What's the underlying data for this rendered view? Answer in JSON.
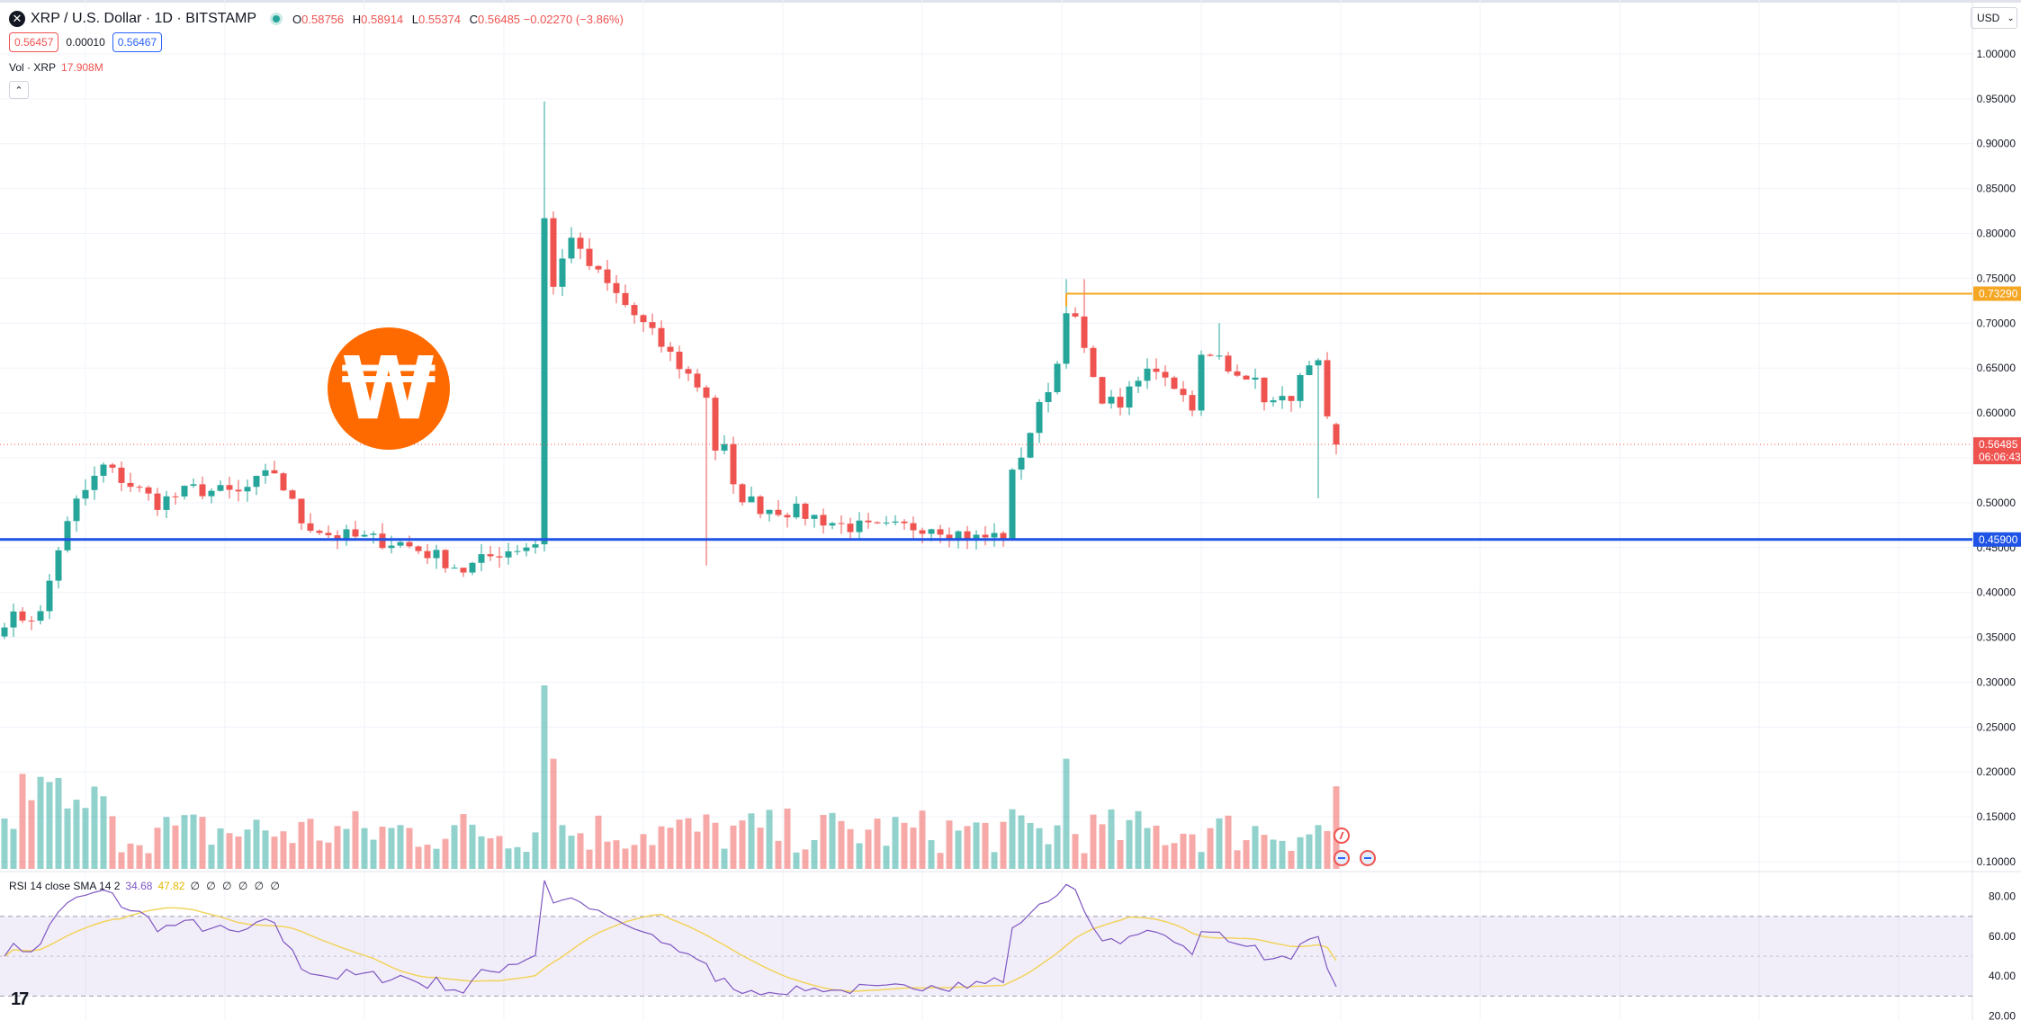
{
  "header": {
    "symbol_title": "XRP / U.S. Dollar · 1D · BITSTAMP",
    "ohlc": [
      {
        "k": "O",
        "v": "0.58756"
      },
      {
        "k": "H",
        "v": "0.58914"
      },
      {
        "k": "L",
        "v": "0.55374"
      },
      {
        "k": "C",
        "v": "0.56485 −0.02270 (−3.86%)"
      }
    ],
    "bid": "0.56457",
    "spread": "0.00010",
    "ask": "0.56467",
    "currency": "USD"
  },
  "volume": {
    "label": "Vol · XRP",
    "value": "17.908M"
  },
  "rsi": {
    "label": "RSI 14 close SMA 14 2",
    "rsi_value": "34.68",
    "sma_value": "47.82",
    "extra": "∅ ∅ ∅ ∅ ∅ ∅"
  },
  "colors": {
    "up": "#26a69a",
    "down": "#ef5350",
    "support": "#1e53e5",
    "resistance": "#f5a623",
    "rsi": "#7e57c2",
    "rsi_sma": "#f2d35c"
  },
  "icons": [
    "close-icon",
    "chevron-up-icon",
    "chevron-down-icon",
    "flash-icon",
    "us-flag-icon",
    "tradingview-logo-icon",
    "brand-logo-icon"
  ],
  "chart_data": {
    "type": "candlestick",
    "price_axis": {
      "ticks": [
        "1.00000",
        "0.95000",
        "0.90000",
        "0.85000",
        "0.80000",
        "0.75000",
        "0.70000",
        "0.65000",
        "0.60000",
        "0.55000",
        "0.50000",
        "0.45000",
        "0.40000",
        "0.35000",
        "0.30000",
        "0.25000",
        "0.20000",
        "0.15000",
        "0.10000"
      ],
      "tick_values": [
        1.0,
        0.95,
        0.9,
        0.85,
        0.8,
        0.75,
        0.7,
        0.65,
        0.6,
        0.55,
        0.5,
        0.45,
        0.4,
        0.35,
        0.3,
        0.25,
        0.2,
        0.15,
        0.1
      ],
      "ylim": [
        0.09,
        1.02
      ]
    },
    "rsi_axis": {
      "ticks": [
        "80.00",
        "60.00",
        "40.00",
        "20.00"
      ],
      "tick_values": [
        80,
        60,
        40,
        20
      ],
      "band": [
        30,
        70
      ],
      "mid": 50,
      "ylim": [
        18,
        92
      ]
    },
    "price_labels": [
      {
        "text": "0.73290",
        "value": 0.7329,
        "kind": "resistance"
      },
      {
        "text": "0.56485",
        "value": 0.56485,
        "kind": "last",
        "countdown": "06:06:43"
      },
      {
        "text": "0.45900",
        "value": 0.459,
        "kind": "support"
      }
    ],
    "horizontal_lines": [
      {
        "name": "resistance",
        "value": 0.7329,
        "from_index": 118
      },
      {
        "name": "support",
        "value": 0.459,
        "from_index": 0
      },
      {
        "name": "last-price",
        "value": 0.56485,
        "from_index": 0,
        "dotted": true
      }
    ],
    "anchors": [
      [
        0,
        0.37
      ],
      [
        4,
        0.375
      ],
      [
        6,
        0.45
      ],
      [
        8,
        0.5
      ],
      [
        11,
        0.54
      ],
      [
        14,
        0.52
      ],
      [
        17,
        0.5
      ],
      [
        21,
        0.515
      ],
      [
        26,
        0.51
      ],
      [
        30,
        0.535
      ],
      [
        33,
        0.48
      ],
      [
        36,
        0.465
      ],
      [
        40,
        0.46
      ],
      [
        44,
        0.455
      ],
      [
        48,
        0.44
      ],
      [
        51,
        0.425
      ],
      [
        55,
        0.445
      ],
      [
        59,
        0.455
      ],
      [
        63,
        0.465
      ],
      [
        68,
        0.5
      ],
      [
        72,
        0.53
      ],
      [
        76,
        0.53
      ],
      [
        80,
        0.52
      ],
      [
        84,
        0.495
      ],
      [
        88,
        0.49
      ],
      [
        93,
        0.475
      ],
      [
        97,
        0.47
      ],
      [
        103,
        0.475
      ],
      [
        108,
        0.46
      ],
      [
        115,
        0.47
      ],
      [
        120,
        0.48
      ],
      [
        126,
        0.48
      ],
      [
        130,
        0.485
      ],
      [
        134,
        0.5
      ],
      [
        138,
        0.495
      ],
      [
        141,
        0.48
      ],
      [
        146,
        0.47
      ],
      [
        150,
        0.485
      ],
      [
        154,
        0.5
      ],
      [
        158,
        0.48
      ]
    ],
    "pumps": [
      {
        "name": "spike-1",
        "index": 60,
        "high": 0.947
      },
      {
        "name": "spike-2",
        "index": 118,
        "high": 0.749
      }
    ],
    "last_index": 148,
    "volume_scale_max": 0.335,
    "rsi_series": "derived from price candles (14-period), with 14-period SMA"
  }
}
